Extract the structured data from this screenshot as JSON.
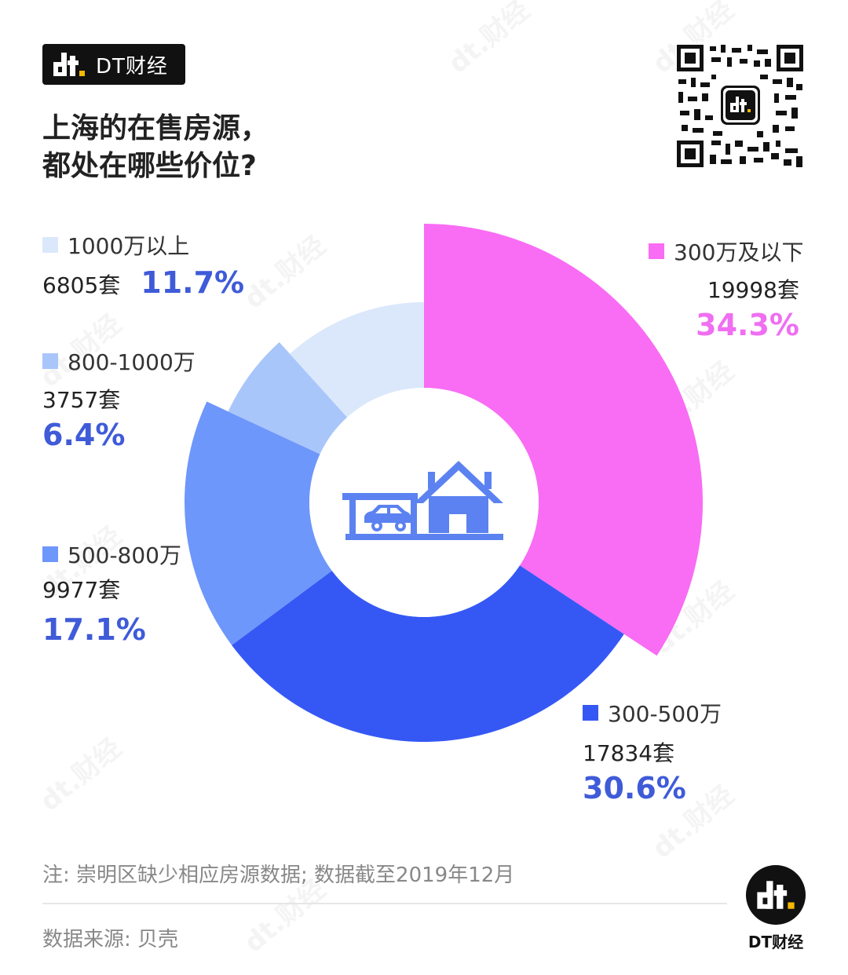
{
  "brand": {
    "name": "DT财经"
  },
  "title": {
    "line1": "上海的在售房源，",
    "line2": "都处在哪些价位?"
  },
  "chart_data": {
    "type": "pie",
    "slices": [
      {
        "label": "300万及以下",
        "count": "19998套",
        "value": 34.3,
        "pct_label": "34.3%",
        "color": "#f96cf4",
        "pct_color": "#f06ef2"
      },
      {
        "label": "300-500万",
        "count": "17834套",
        "value": 30.6,
        "pct_label": "30.6%",
        "color": "#3558f5",
        "pct_color": "#3f5bd8"
      },
      {
        "label": "500-800万",
        "count": "9977套",
        "value": 17.1,
        "pct_label": "17.1%",
        "color": "#6e97fb",
        "pct_color": "#3f5bd8"
      },
      {
        "label": "800-1000万",
        "count": "3757套",
        "value": 6.4,
        "pct_label": "6.4%",
        "color": "#a9c6fb",
        "pct_color": "#3f5bd8"
      },
      {
        "label": "1000万以上",
        "count": "6805套",
        "value": 11.7,
        "pct_label": "11.7%",
        "color": "#dbe8fb",
        "pct_color": "#3f5bd8"
      }
    ]
  },
  "footer": {
    "note": "注: 崇明区缺少相应房源数据; 数据截至2019年12月",
    "source": "数据来源: 贝壳",
    "logo_label": "DT财经"
  },
  "icons": {
    "center": "house-car-icon",
    "qr": "qr-code-icon",
    "logo": "dt-logo-icon"
  }
}
